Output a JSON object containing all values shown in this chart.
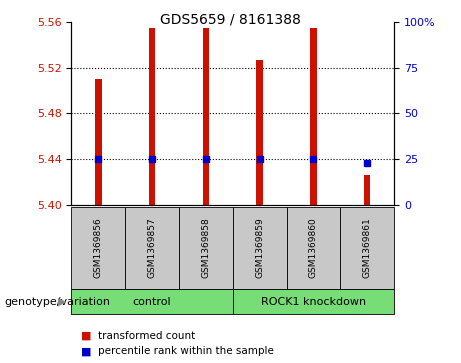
{
  "title": "GDS5659 / 8161388",
  "samples": [
    "GSM1369856",
    "GSM1369857",
    "GSM1369858",
    "GSM1369859",
    "GSM1369860",
    "GSM1369861"
  ],
  "red_values": [
    5.51,
    5.555,
    5.555,
    5.527,
    5.555,
    5.426
  ],
  "blue_values": [
    5.44,
    5.44,
    5.44,
    5.44,
    5.44,
    5.437
  ],
  "y_min": 5.4,
  "y_max": 5.56,
  "y_ticks_left": [
    5.4,
    5.44,
    5.48,
    5.52,
    5.56
  ],
  "y_ticks_right": [
    0,
    25,
    50,
    75,
    100
  ],
  "group_bg_color": "#C8C8C8",
  "plot_bg_color": "#FFFFFF",
  "bar_color": "#CC1100",
  "blue_color": "#0000CC",
  "bar_width": 0.12,
  "grid_vals": [
    5.44,
    5.48,
    5.52
  ],
  "legend_red": "transformed count",
  "legend_blue": "percentile rank within the sample",
  "genotype_label": "genotype/variation",
  "title_fontsize": 10,
  "tick_fontsize": 8,
  "sample_fontsize": 6.5,
  "group_fontsize": 8,
  "legend_fontsize": 7.5,
  "green_color": "#77DD77",
  "arrow_color": "#888888"
}
